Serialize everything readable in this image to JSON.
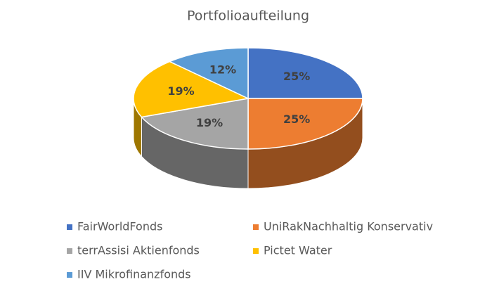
{
  "chart_data": {
    "type": "pie",
    "title": "Portfolioaufteilung",
    "categories": [
      "FairWorldFonds",
      "UniRakNachhaltig Konservativ",
      "terrAssisi Aktienfonds",
      "Pictet Water",
      "IIV Mikrofinanzfonds"
    ],
    "values": [
      25,
      25,
      19,
      19,
      12
    ],
    "value_labels": [
      "25%",
      "25%",
      "19%",
      "19%",
      "12%"
    ],
    "colors": [
      "#4472c4",
      "#ed7d31",
      "#a5a5a5",
      "#ffc000",
      "#5b9bd5"
    ],
    "legend": "bottom"
  }
}
